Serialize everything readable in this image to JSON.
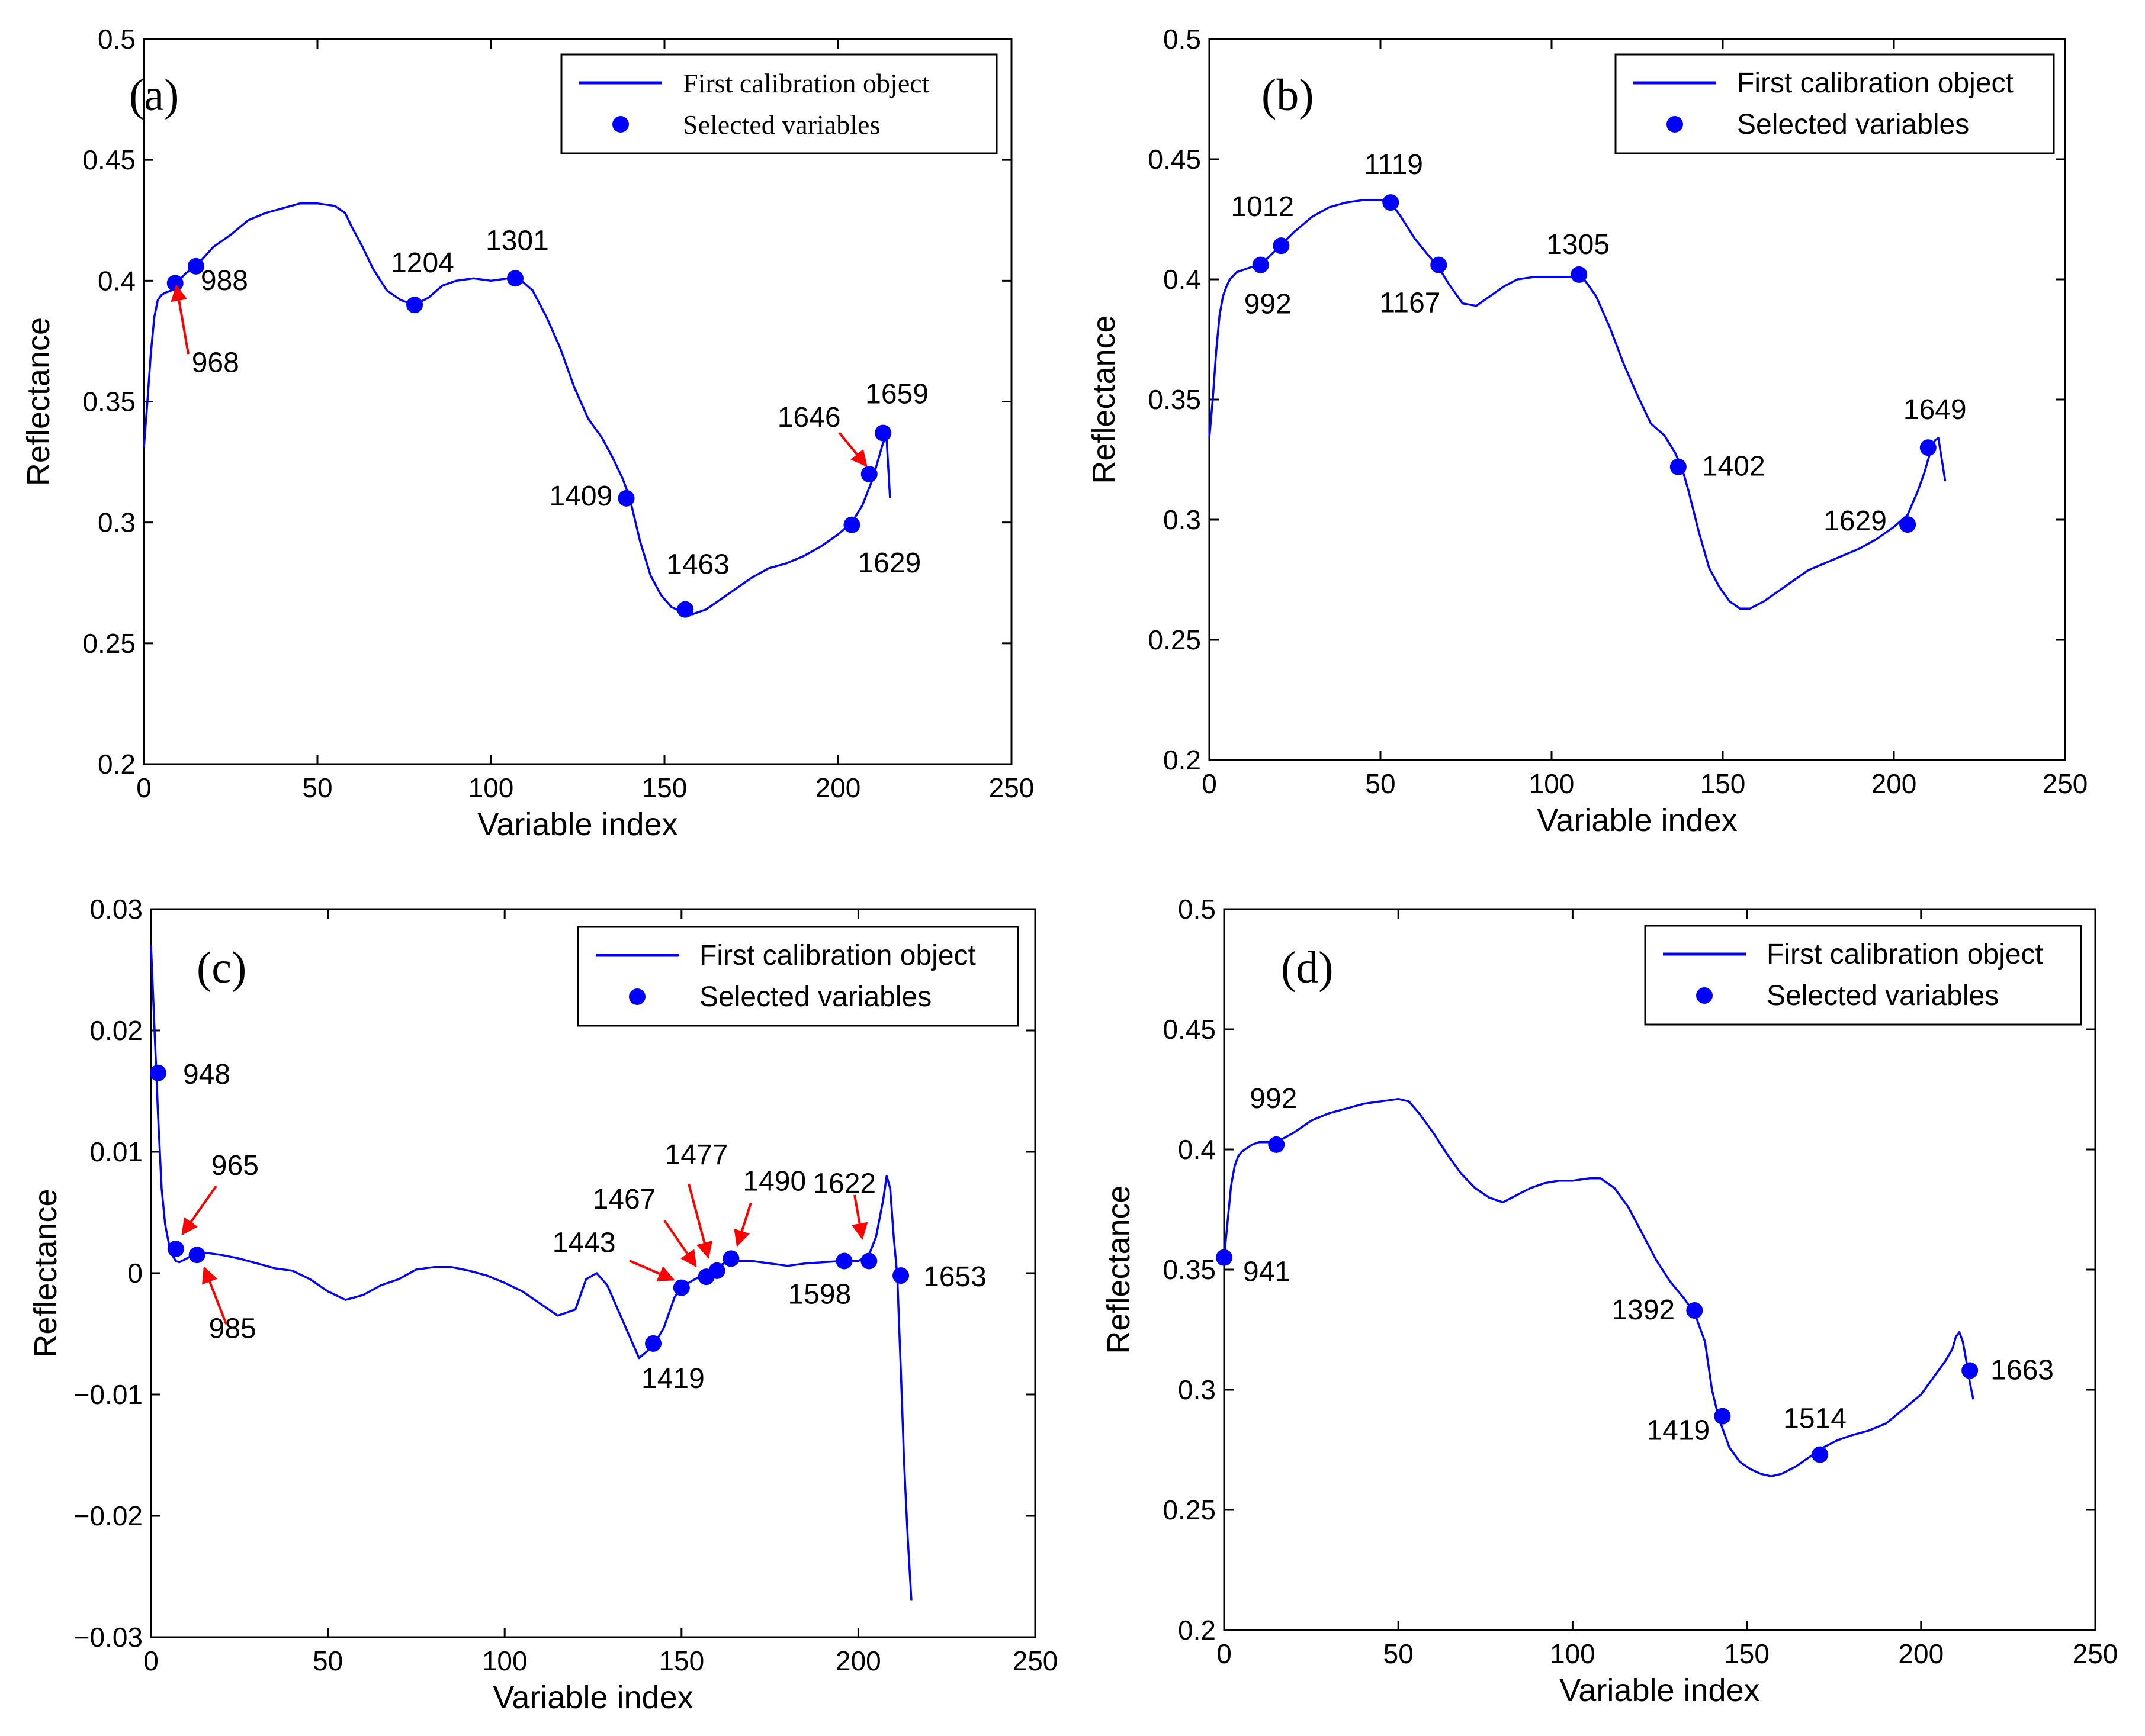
{
  "colors": {
    "line": "#0000ff",
    "marker": "#0000ff",
    "arrow": "#ff0000"
  },
  "chart_data": [
    {
      "type": "line",
      "panel": "(a)",
      "xlabel": "Variable index",
      "ylabel": "Reflectance",
      "xlim": [
        0,
        250
      ],
      "ylim": [
        0.2,
        0.5
      ],
      "xticks": [
        "0",
        "50",
        "100",
        "150",
        "200",
        "250"
      ],
      "yticks": [
        "0.2",
        "0.25",
        "0.3",
        "0.35",
        "0.4",
        "0.45",
        "0.5"
      ],
      "legend": {
        "location": "top-right",
        "line_label": "First calibration object",
        "marker_label": "Selected variables"
      },
      "series": [
        {
          "name": "First calibration object",
          "x": [
            0,
            1,
            2,
            3,
            4,
            5,
            6,
            8,
            10,
            12,
            15,
            20,
            25,
            30,
            35,
            40,
            45,
            50,
            55,
            58,
            60,
            63,
            66,
            70,
            74,
            78,
            82,
            86,
            90,
            95,
            100,
            105,
            108,
            112,
            116,
            120,
            124,
            128,
            132,
            135,
            138,
            140,
            143,
            146,
            149,
            152,
            155,
            158,
            162,
            166,
            170,
            175,
            180,
            185,
            190,
            195,
            200,
            204,
            207,
            210,
            212,
            213,
            214,
            215
          ],
          "y": [
            0.331,
            0.35,
            0.37,
            0.385,
            0.392,
            0.394,
            0.395,
            0.396,
            0.4,
            0.403,
            0.406,
            0.414,
            0.419,
            0.425,
            0.428,
            0.43,
            0.432,
            0.432,
            0.431,
            0.428,
            0.422,
            0.414,
            0.405,
            0.396,
            0.392,
            0.39,
            0.393,
            0.398,
            0.4,
            0.401,
            0.4,
            0.401,
            0.401,
            0.396,
            0.385,
            0.372,
            0.356,
            0.343,
            0.335,
            0.327,
            0.318,
            0.31,
            0.292,
            0.278,
            0.27,
            0.265,
            0.263,
            0.262,
            0.264,
            0.268,
            0.272,
            0.277,
            0.281,
            0.283,
            0.286,
            0.29,
            0.295,
            0.3,
            0.307,
            0.318,
            0.328,
            0.333,
            0.335,
            0.31
          ]
        }
      ],
      "selected": [
        {
          "x": 9,
          "y": 0.399,
          "label": "968"
        },
        {
          "x": 15,
          "y": 0.406,
          "label": "988"
        },
        {
          "x": 78,
          "y": 0.39,
          "label": "1204"
        },
        {
          "x": 107,
          "y": 0.401,
          "label": "1301"
        },
        {
          "x": 139,
          "y": 0.31,
          "label": "1409"
        },
        {
          "x": 156,
          "y": 0.264,
          "label": "1463"
        },
        {
          "x": 204,
          "y": 0.299,
          "label": "1629"
        },
        {
          "x": 209,
          "y": 0.32,
          "label": "1646"
        },
        {
          "x": 213,
          "y": 0.337,
          "label": "1659"
        }
      ]
    },
    {
      "type": "line",
      "panel": "(b)",
      "xlabel": "Variable index",
      "ylabel": "Reflectance",
      "xlim": [
        0,
        250
      ],
      "ylim": [
        0.2,
        0.5
      ],
      "xticks": [
        "0",
        "50",
        "100",
        "150",
        "200",
        "250"
      ],
      "yticks": [
        "0.2",
        "0.25",
        "0.3",
        "0.35",
        "0.4",
        "0.45",
        "0.5"
      ],
      "legend": {
        "location": "top-right",
        "line_label": "First calibration object",
        "marker_label": "Selected variables"
      },
      "series": [
        {
          "name": "First calibration object",
          "x": [
            0,
            1,
            2,
            3,
            4,
            5,
            6,
            8,
            10,
            12,
            15,
            20,
            25,
            30,
            35,
            40,
            45,
            50,
            53,
            56,
            60,
            64,
            67,
            70,
            74,
            78,
            82,
            86,
            90,
            95,
            100,
            105,
            109,
            113,
            117,
            121,
            125,
            129,
            133,
            136,
            138,
            140,
            143,
            146,
            149,
            152,
            155,
            158,
            162,
            166,
            170,
            175,
            180,
            185,
            190,
            195,
            200,
            204,
            207,
            209,
            211,
            212,
            213,
            214,
            215
          ],
          "y": [
            0.334,
            0.35,
            0.37,
            0.385,
            0.393,
            0.397,
            0.4,
            0.403,
            0.404,
            0.405,
            0.406,
            0.413,
            0.42,
            0.426,
            0.43,
            0.432,
            0.433,
            0.433,
            0.432,
            0.426,
            0.417,
            0.41,
            0.405,
            0.398,
            0.39,
            0.389,
            0.393,
            0.397,
            0.4,
            0.401,
            0.401,
            0.401,
            0.401,
            0.393,
            0.38,
            0.365,
            0.352,
            0.34,
            0.335,
            0.328,
            0.322,
            0.312,
            0.295,
            0.28,
            0.272,
            0.266,
            0.263,
            0.263,
            0.266,
            0.27,
            0.274,
            0.279,
            0.282,
            0.285,
            0.288,
            0.292,
            0.297,
            0.302,
            0.312,
            0.32,
            0.33,
            0.333,
            0.334,
            0.325,
            0.316
          ]
        }
      ],
      "selected": [
        {
          "x": 15,
          "y": 0.406,
          "label": "992"
        },
        {
          "x": 21,
          "y": 0.414,
          "label": "1012"
        },
        {
          "x": 53,
          "y": 0.432,
          "label": "1119"
        },
        {
          "x": 67,
          "y": 0.406,
          "label": "1167"
        },
        {
          "x": 108,
          "y": 0.402,
          "label": "1305"
        },
        {
          "x": 137,
          "y": 0.322,
          "label": "1402"
        },
        {
          "x": 204,
          "y": 0.298,
          "label": "1629"
        },
        {
          "x": 210,
          "y": 0.33,
          "label": "1649"
        }
      ]
    },
    {
      "type": "line",
      "panel": "(c)",
      "xlabel": "Variable index",
      "ylabel": "Reflectance",
      "xlim": [
        0,
        250
      ],
      "ylim": [
        -0.03,
        0.03
      ],
      "xticks": [
        "0",
        "50",
        "100",
        "150",
        "200",
        "250"
      ],
      "yticks": [
        "−0.03",
        "−0.02",
        "−0.01",
        "0",
        "0.01",
        "0.02",
        "0.03"
      ],
      "legend": {
        "location": "top-right",
        "line_label": "First calibration object",
        "marker_label": "Selected variables"
      },
      "series": [
        {
          "name": "First calibration object",
          "x": [
            0,
            1,
            2,
            3,
            4,
            5,
            6,
            7,
            8,
            10,
            12,
            15,
            20,
            25,
            30,
            35,
            40,
            45,
            50,
            55,
            60,
            65,
            70,
            75,
            80,
            85,
            90,
            95,
            100,
            105,
            110,
            115,
            120,
            123,
            126,
            129,
            132,
            135,
            138,
            140,
            142,
            145,
            148,
            150,
            152,
            155,
            158,
            162,
            166,
            170,
            175,
            180,
            185,
            190,
            195,
            200,
            203,
            205,
            207,
            208,
            209,
            210,
            211,
            212,
            213,
            214,
            215
          ],
          "y": [
            0.027,
            0.02,
            0.013,
            0.007,
            0.004,
            0.0025,
            0.0015,
            0.001,
            0.0009,
            0.0012,
            0.0015,
            0.0017,
            0.0015,
            0.0012,
            0.0008,
            0.0004,
            0.0002,
            -0.0005,
            -0.0015,
            -0.0022,
            -0.0018,
            -0.001,
            -0.0005,
            0.0003,
            0.0005,
            0.0005,
            0.0002,
            -0.0002,
            -0.0008,
            -0.0015,
            -0.0025,
            -0.0035,
            -0.003,
            -0.0005,
            0.0,
            -0.001,
            -0.003,
            -0.005,
            -0.007,
            -0.0065,
            -0.006,
            -0.0045,
            -0.002,
            -0.0012,
            -0.0008,
            -0.0003,
            0.0003,
            0.0008,
            0.001,
            0.001,
            0.0008,
            0.0006,
            0.0008,
            0.0009,
            0.001,
            0.001,
            0.0015,
            0.003,
            0.006,
            0.008,
            0.007,
            0.003,
            -0.0002,
            -0.008,
            -0.016,
            -0.022,
            -0.027
          ]
        }
      ],
      "selected": [
        {
          "x": 2,
          "y": 0.0165,
          "label": "948"
        },
        {
          "x": 7,
          "y": 0.002,
          "label": "965"
        },
        {
          "x": 13,
          "y": 0.0015,
          "label": "985"
        },
        {
          "x": 142,
          "y": -0.0058,
          "label": "1419"
        },
        {
          "x": 150,
          "y": -0.0012,
          "label": "1443"
        },
        {
          "x": 157,
          "y": -0.0003,
          "label": "1467"
        },
        {
          "x": 160,
          "y": 0.0002,
          "label": "1477"
        },
        {
          "x": 164,
          "y": 0.0012,
          "label": "1490"
        },
        {
          "x": 196,
          "y": 0.001,
          "label": "1598"
        },
        {
          "x": 203,
          "y": 0.001,
          "label": "1622"
        },
        {
          "x": 212,
          "y": -0.0002,
          "label": "1653"
        }
      ]
    },
    {
      "type": "line",
      "panel": "(d)",
      "xlabel": "Variable index",
      "ylabel": "Reflectance",
      "xlim": [
        0,
        250
      ],
      "ylim": [
        0.2,
        0.5
      ],
      "xticks": [
        "0",
        "50",
        "100",
        "150",
        "200",
        "250"
      ],
      "yticks": [
        "0.2",
        "0.25",
        "0.3",
        "0.35",
        "0.4",
        "0.45",
        "0.5"
      ],
      "legend": {
        "location": "top-right",
        "line_label": "First calibration object",
        "marker_label": "Selected variables"
      },
      "series": [
        {
          "name": "First calibration object",
          "x": [
            0,
            1,
            2,
            3,
            4,
            5,
            6,
            8,
            10,
            12,
            15,
            20,
            25,
            30,
            35,
            40,
            45,
            50,
            53,
            56,
            60,
            64,
            68,
            72,
            76,
            80,
            84,
            88,
            92,
            96,
            100,
            105,
            108,
            112,
            116,
            120,
            124,
            128,
            132,
            135,
            138,
            140,
            142,
            145,
            148,
            151,
            154,
            157,
            160,
            164,
            168,
            172,
            176,
            180,
            185,
            190,
            195,
            200,
            204,
            207,
            209,
            210,
            211,
            212,
            213,
            214,
            215
          ],
          "y": [
            0.355,
            0.37,
            0.385,
            0.393,
            0.397,
            0.399,
            0.4,
            0.402,
            0.403,
            0.403,
            0.403,
            0.407,
            0.412,
            0.415,
            0.417,
            0.419,
            0.42,
            0.421,
            0.42,
            0.415,
            0.407,
            0.398,
            0.39,
            0.384,
            0.38,
            0.378,
            0.381,
            0.384,
            0.386,
            0.387,
            0.387,
            0.388,
            0.388,
            0.384,
            0.376,
            0.365,
            0.354,
            0.345,
            0.338,
            0.332,
            0.32,
            0.3,
            0.288,
            0.276,
            0.27,
            0.267,
            0.265,
            0.264,
            0.265,
            0.268,
            0.272,
            0.276,
            0.279,
            0.281,
            0.283,
            0.286,
            0.292,
            0.298,
            0.306,
            0.312,
            0.317,
            0.322,
            0.324,
            0.32,
            0.312,
            0.303,
            0.296
          ]
        }
      ],
      "selected": [
        {
          "x": 0,
          "y": 0.355,
          "label": "941"
        },
        {
          "x": 15,
          "y": 0.402,
          "label": "992"
        },
        {
          "x": 135,
          "y": 0.333,
          "label": "1392"
        },
        {
          "x": 143,
          "y": 0.289,
          "label": "1419"
        },
        {
          "x": 171,
          "y": 0.273,
          "label": "1514"
        },
        {
          "x": 214,
          "y": 0.308,
          "label": "1663"
        }
      ]
    }
  ]
}
